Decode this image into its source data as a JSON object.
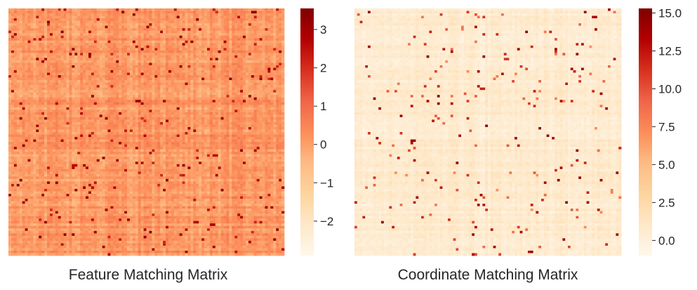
{
  "chart_data": [
    {
      "type": "heatmap",
      "title": "",
      "caption": "Feature Matching Matrix",
      "rows": 100,
      "cols": 100,
      "colormap": "OrRd",
      "colorbar": {
        "min": -2.9,
        "max": 3.55,
        "ticks": [
          3,
          2,
          1,
          0,
          -1,
          -2
        ],
        "tick_labels": [
          "3",
          "2",
          "1",
          "0",
          "−1",
          "−2"
        ]
      },
      "value_distribution": {
        "mean": 0.1,
        "spread": 0.55,
        "hot_spot_rate": 0.03,
        "hot_spot_range": [
          2.0,
          3.5
        ]
      }
    },
    {
      "type": "heatmap",
      "title": "",
      "caption": "Coordinate Matching Matrix",
      "rows": 100,
      "cols": 100,
      "colormap": "OrRd",
      "colorbar": {
        "min": -1.0,
        "max": 15.3,
        "ticks": [
          15,
          12.5,
          10,
          7.5,
          5,
          2.5,
          0
        ],
        "tick_labels": [
          "15.0",
          "12.5",
          "10.0",
          "7.5",
          "5.0",
          "2.5",
          "0.0"
        ]
      },
      "value_distribution": {
        "mean": 0.6,
        "spread": 0.9,
        "hot_spot_rate": 0.025,
        "hot_spot_range": [
          7.0,
          15.0
        ]
      }
    }
  ],
  "colors": {
    "colormap_stops": [
      "#fff7ec",
      "#fee8c8",
      "#fdd49e",
      "#fdbb84",
      "#fc8d59",
      "#ef6548",
      "#d7301f",
      "#b30000",
      "#7f0000"
    ],
    "text": "#262626"
  }
}
